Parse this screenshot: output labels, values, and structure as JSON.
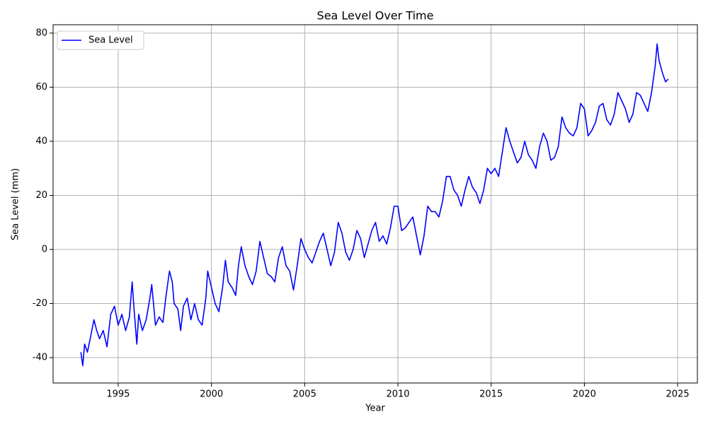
{
  "chart_data": {
    "type": "line",
    "title": "Sea Level Over Time",
    "xlabel": "Year",
    "ylabel": "Sea Level (mm)",
    "x": [
      1993.0,
      1993.1,
      1993.2,
      1993.35,
      1993.5,
      1993.7,
      1993.85,
      1994.0,
      1994.2,
      1994.4,
      1994.6,
      1994.8,
      1995.0,
      1995.2,
      1995.4,
      1995.6,
      1995.75,
      1995.85,
      1996.0,
      1996.1,
      1996.3,
      1996.5,
      1996.7,
      1996.8,
      1997.0,
      1997.2,
      1997.4,
      1997.55,
      1997.75,
      1997.9,
      1998.0,
      1998.2,
      1998.35,
      1998.5,
      1998.7,
      1998.9,
      1999.1,
      1999.3,
      1999.5,
      1999.7,
      1999.8,
      2000.0,
      2000.2,
      2000.4,
      2000.6,
      2000.75,
      2000.9,
      2001.1,
      2001.3,
      2001.45,
      2001.6,
      2001.8,
      2002.0,
      2002.2,
      2002.4,
      2002.6,
      2002.8,
      2003.0,
      2003.2,
      2003.4,
      2003.6,
      2003.8,
      2004.0,
      2004.2,
      2004.4,
      2004.6,
      2004.8,
      2005.0,
      2005.2,
      2005.4,
      2005.6,
      2005.8,
      2006.0,
      2006.2,
      2006.4,
      2006.6,
      2006.8,
      2007.0,
      2007.2,
      2007.4,
      2007.6,
      2007.8,
      2008.0,
      2008.2,
      2008.4,
      2008.6,
      2008.8,
      2009.0,
      2009.2,
      2009.4,
      2009.6,
      2009.8,
      2010.0,
      2010.2,
      2010.4,
      2010.6,
      2010.8,
      2011.0,
      2011.2,
      2011.4,
      2011.6,
      2011.8,
      2012.0,
      2012.2,
      2012.4,
      2012.6,
      2012.8,
      2013.0,
      2013.2,
      2013.4,
      2013.6,
      2013.8,
      2014.0,
      2014.2,
      2014.4,
      2014.6,
      2014.8,
      2015.0,
      2015.2,
      2015.4,
      2015.6,
      2015.8,
      2016.0,
      2016.2,
      2016.4,
      2016.6,
      2016.8,
      2017.0,
      2017.2,
      2017.4,
      2017.6,
      2017.8,
      2018.0,
      2018.2,
      2018.4,
      2018.6,
      2018.8,
      2019.0,
      2019.2,
      2019.4,
      2019.6,
      2019.8,
      2020.0,
      2020.2,
      2020.4,
      2020.6,
      2020.8,
      2021.0,
      2021.2,
      2021.4,
      2021.6,
      2021.8,
      2022.0,
      2022.2,
      2022.4,
      2022.6,
      2022.8,
      2023.0,
      2023.2,
      2023.4,
      2023.6,
      2023.8,
      2023.9,
      2024.0,
      2024.2,
      2024.35,
      2024.5
    ],
    "series": [
      {
        "name": "Sea Level",
        "color": "#0000ff",
        "values": [
          -38,
          -43,
          -35,
          -38,
          -33,
          -26,
          -30,
          -33,
          -30,
          -36,
          -24,
          -21,
          -28,
          -24,
          -30,
          -25,
          -12,
          -22,
          -35,
          -24,
          -30,
          -26,
          -18,
          -13,
          -28,
          -25,
          -27,
          -18,
          -8,
          -12,
          -20,
          -22,
          -30,
          -21,
          -18,
          -26,
          -20,
          -26,
          -28,
          -18,
          -8,
          -14,
          -20,
          -23,
          -14,
          -4,
          -12,
          -14,
          -17,
          -6,
          1,
          -6,
          -10,
          -13,
          -8,
          3,
          -3,
          -9,
          -10,
          -12,
          -3,
          1,
          -6,
          -8,
          -15,
          -6,
          4,
          0,
          -3,
          -5,
          -1,
          3,
          6,
          0,
          -6,
          -1,
          10,
          6,
          -1,
          -4,
          0,
          7,
          4,
          -3,
          2,
          7,
          10,
          3,
          5,
          2,
          8,
          16,
          16,
          7,
          8,
          10,
          12,
          5,
          -2,
          5,
          16,
          14,
          14,
          12,
          18,
          27,
          27,
          22,
          20,
          16,
          22,
          27,
          23,
          21,
          17,
          22,
          30,
          28,
          30,
          27,
          36,
          45,
          40,
          36,
          32,
          34,
          40,
          35,
          33,
          30,
          38,
          43,
          40,
          33,
          34,
          38,
          49,
          45,
          43,
          42,
          45,
          54,
          52,
          42,
          44,
          47,
          53,
          54,
          48,
          46,
          50,
          58,
          55,
          52,
          47,
          50,
          58,
          57,
          54,
          51,
          58,
          68,
          76,
          70,
          65,
          62,
          63
        ]
      }
    ],
    "xlim": [
      1991.51,
      2026.06
    ],
    "xticks": [
      1995,
      2000,
      2005,
      2010,
      2015,
      2020,
      2025
    ],
    "ylim": [
      -49.4,
      83.1
    ],
    "yticks": [
      -40,
      -20,
      0,
      20,
      40,
      60,
      80
    ],
    "grid": true,
    "legend": "upper left"
  }
}
